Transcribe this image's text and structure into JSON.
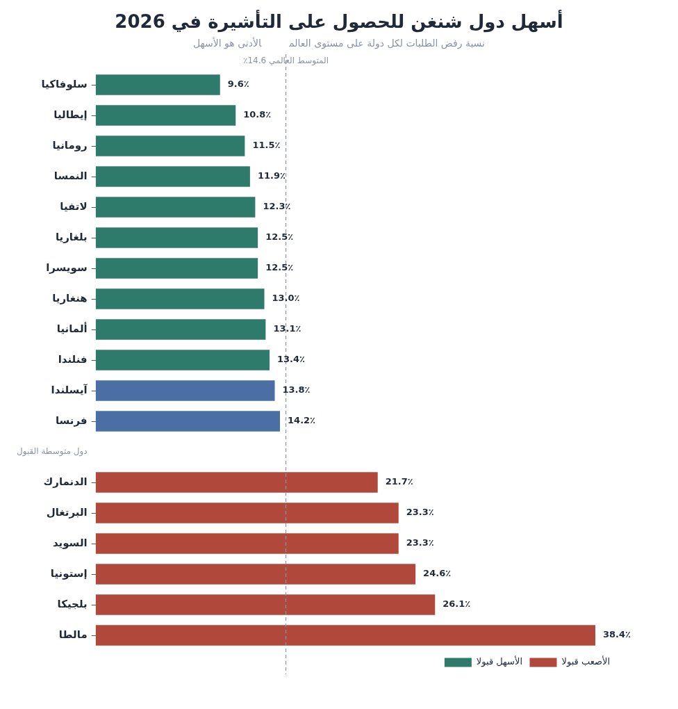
{
  "chart_data": {
    "type": "bar",
    "orientation": "horizontal",
    "title": "أسهل دول شنغن للحصول على التأشيرة في 2026",
    "subtitle": "نسبة رفض الطلبات لكل دولة على مستوى العالم",
    "annotations": [
      "الأدنى هو الأسهل"
    ],
    "categories": [
      "سلوفاكيا",
      "إيطاليا",
      "رومانيا",
      "النمسا",
      "لاتفيا",
      "بلغاريا",
      "سويسرا",
      "هنغاريا",
      "ألمانيا",
      "فنلندا",
      "آيسلندا",
      "فرنسا",
      "دول متوسطة القبول",
      "الدنمارك",
      "البرتغال",
      "السويد",
      "إستونيا",
      "بلجيكا",
      "مالطا"
    ],
    "series": [
      {
        "name": "الأسهل قبولا",
        "color": "#2e7b6b",
        "values": [
          9.6,
          10.8,
          11.5,
          11.9,
          12.3,
          12.5,
          12.5,
          13.0,
          13.1,
          13.4,
          null,
          null,
          null,
          null,
          null,
          null,
          null,
          null,
          null
        ],
        "value_labels": [
          "9.6٪",
          "10.8٪",
          "11.5٪",
          "11.9٪",
          "12.3٪",
          "12.5٪",
          "12.5٪",
          "13.0٪",
          "13.1٪",
          "13.4٪",
          null,
          null,
          null,
          null,
          null,
          null,
          null,
          null,
          null
        ]
      },
      {
        "color": "#4a6fa5",
        "values": [
          null,
          null,
          null,
          null,
          null,
          null,
          null,
          null,
          null,
          null,
          13.8,
          14.2,
          null,
          null,
          null,
          null,
          null,
          null,
          null
        ],
        "value_labels": [
          null,
          null,
          null,
          null,
          null,
          null,
          null,
          null,
          null,
          null,
          "13.8٪",
          "14.2٪",
          null,
          null,
          null,
          null,
          null,
          null,
          null
        ]
      },
      {
        "name": "الأصعب قبولا",
        "color": "#b0493c",
        "values": [
          null,
          null,
          null,
          null,
          null,
          null,
          null,
          null,
          null,
          null,
          null,
          null,
          null,
          21.7,
          23.3,
          23.3,
          24.6,
          26.1,
          38.4
        ],
        "value_labels": [
          null,
          null,
          null,
          null,
          null,
          null,
          null,
          null,
          null,
          null,
          null,
          null,
          null,
          "21.7٪",
          "23.3٪",
          "23.3٪",
          "24.6٪",
          "26.1٪",
          "38.4٪"
        ]
      }
    ],
    "ref_lines": [
      {
        "axis": "x",
        "value": 14.6,
        "label": "المتوسط العالمي 14.6٪",
        "color": "#8a93a6",
        "line_style": "dashed"
      }
    ],
    "tick_labels": "y",
    "grid": false,
    "legend": "bottom right"
  }
}
